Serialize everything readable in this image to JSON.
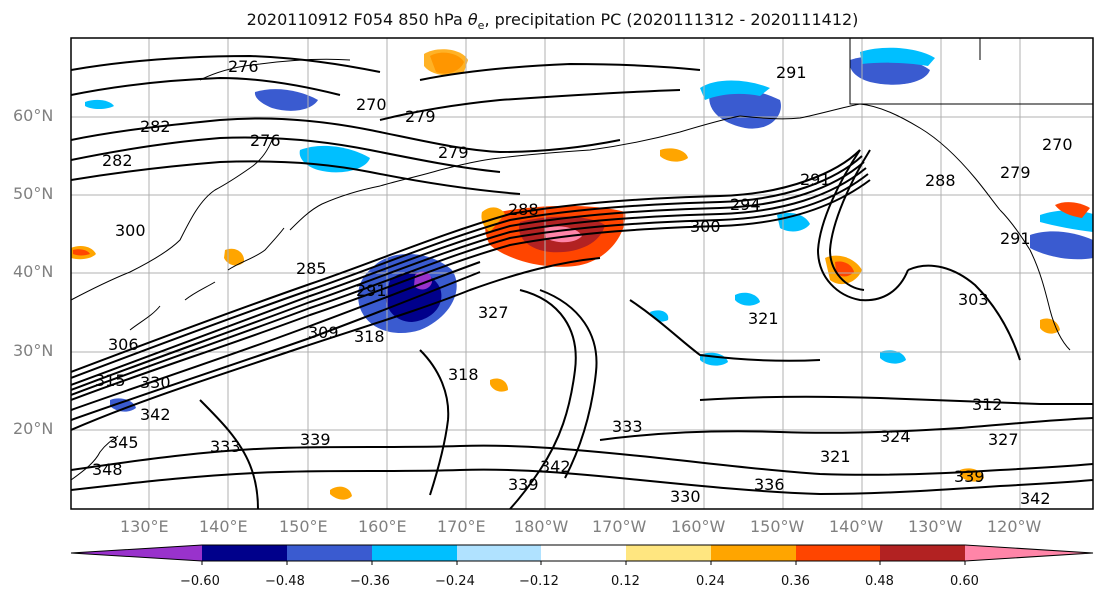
{
  "title": {
    "prefix": "2020110912 F054 850 hPa ",
    "var_symbol": "θ",
    "var_sub": "e",
    "suffix": ", precipitation PC (2020111312 - 2020111412)"
  },
  "lat_labels": [
    "60°N",
    "50°N",
    "40°N",
    "30°N",
    "20°N"
  ],
  "lon_labels": [
    "130°E",
    "140°E",
    "150°E",
    "160°E",
    "170°E",
    "180°W",
    "170°W",
    "160°W",
    "150°W",
    "140°W",
    "130°W",
    "120°W"
  ],
  "colorbar": {
    "ticks": [
      "−0.60",
      "−0.48",
      "−0.36",
      "−0.24",
      "−0.12",
      "0.12",
      "0.24",
      "0.36",
      "0.48",
      "0.60"
    ],
    "colors": [
      "#9932cc",
      "#00008b",
      "#3a5bd0",
      "#00bfff",
      "#b0e2ff",
      "#ffffff",
      "#ffe680",
      "#ffa500",
      "#ff4500",
      "#b22222",
      "#ff85a8"
    ]
  },
  "contour_labels": [
    "282",
    "282",
    "276",
    "279",
    "279",
    "288",
    "294",
    "291",
    "300",
    "285",
    "291",
    "303",
    "309",
    "318",
    "306",
    "315",
    "330",
    "342",
    "345",
    "348",
    "333",
    "339",
    "327",
    "321",
    "318",
    "333",
    "342",
    "339",
    "330",
    "336",
    "321",
    "312",
    "324",
    "327",
    "339",
    "342",
    "288",
    "270",
    "279",
    "291",
    "270",
    "276",
    "300",
    "291"
  ],
  "colors": {
    "grid": "#b0b0b0",
    "frame": "#000000",
    "contour": "#000000",
    "coast": "#000000"
  }
}
